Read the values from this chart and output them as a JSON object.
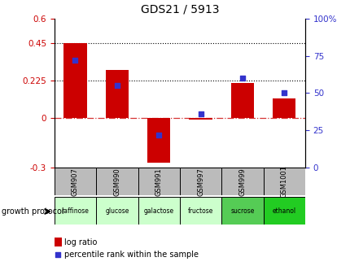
{
  "title": "GDS21 / 5913",
  "samples": [
    "GSM907",
    "GSM990",
    "GSM991",
    "GSM997",
    "GSM999",
    "GSM1001"
  ],
  "protocols": [
    "raffinose",
    "glucose",
    "galactose",
    "fructose",
    "sucrose",
    "ethanol"
  ],
  "log_ratio": [
    0.45,
    0.29,
    -0.27,
    -0.01,
    0.21,
    0.12
  ],
  "percentile_rank": [
    72,
    55,
    22,
    36,
    60,
    50
  ],
  "bar_color": "#cc0000",
  "dot_color": "#3333cc",
  "left_ylim": [
    -0.3,
    0.6
  ],
  "right_ylim": [
    0,
    100
  ],
  "left_yticks": [
    -0.3,
    0,
    0.225,
    0.45,
    0.6
  ],
  "right_yticks": [
    0,
    25,
    50,
    75,
    100
  ],
  "hline_dotted": [
    0.225,
    0.45
  ],
  "protocol_colors": [
    "#ccffcc",
    "#ccffcc",
    "#ccffcc",
    "#ccffcc",
    "#55cc55",
    "#22cc22"
  ],
  "legend_log_ratio": "log ratio",
  "legend_percentile": "percentile rank within the sample",
  "growth_protocol_label": "growth protocol",
  "header_bg": "#bbbbbb",
  "bg_white": "#ffffff"
}
